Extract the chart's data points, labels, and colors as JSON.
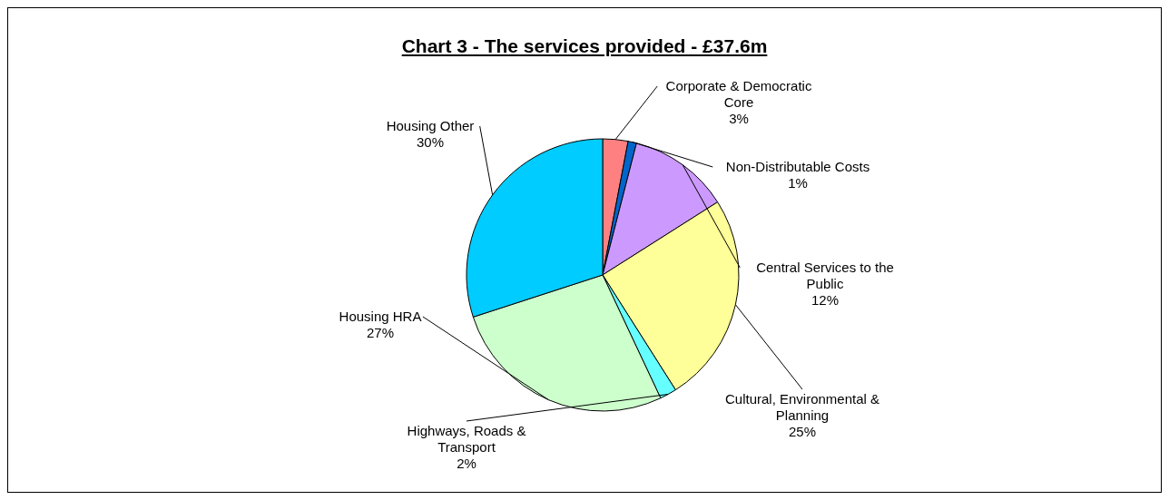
{
  "chart_data": {
    "type": "pie",
    "title": "Chart 3 - The services provided - £37.6m",
    "categories": [
      "Corporate & Democratic Core",
      "Non-Distributable Costs",
      "Central Services to the Public",
      "Cultural, Environmental & Planning",
      "Highways, Roads & Transport",
      "Housing HRA",
      "Housing Other"
    ],
    "values": [
      3,
      1,
      12,
      25,
      2,
      27,
      30
    ],
    "value_labels": [
      "3%",
      "1%",
      "12%",
      "25%",
      "2%",
      "27%",
      "30%"
    ],
    "colors": [
      "#ff8080",
      "#0066cc",
      "#cc99ff",
      "#ffff99",
      "#66ffff",
      "#ccffcc",
      "#00ccff"
    ],
    "legend": false
  }
}
